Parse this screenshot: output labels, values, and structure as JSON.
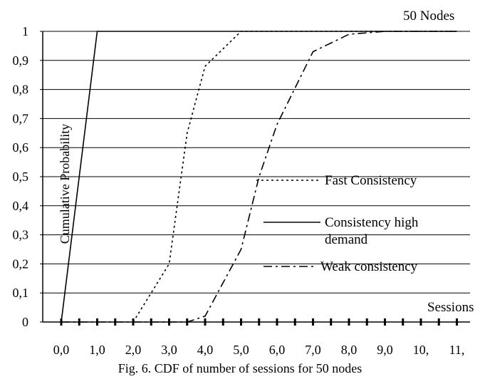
{
  "chart_data": {
    "type": "line",
    "title": "50 Nodes",
    "caption": "Fig. 6. CDF of number of sessions for 50 nodes",
    "xlabel": "Sessions",
    "ylabel": "Cumulative Probability",
    "xlim": [
      0,
      11
    ],
    "ylim": [
      0,
      1
    ],
    "x_tick_values": [
      0,
      1,
      2,
      3,
      4,
      5,
      6,
      7,
      8,
      9,
      10,
      11
    ],
    "x_tick_labels": [
      "0,0",
      "1,0",
      "2,0",
      "3,0",
      "4,0",
      "5,0",
      "6,0",
      "7,0",
      "8,0",
      "9,0",
      "10,",
      "11,"
    ],
    "y_tick_values": [
      0,
      0.1,
      0.2,
      0.3,
      0.4,
      0.5,
      0.6,
      0.7,
      0.8,
      0.9,
      1
    ],
    "y_tick_labels": [
      "0",
      "0,1",
      "0,2",
      "0,3",
      "0,4",
      "0,5",
      "0,6",
      "0,7",
      "0,8",
      "0,9",
      "1"
    ],
    "grid": "horizontal",
    "legend_position": "center-right",
    "series": [
      {
        "name": "Fast Consistency",
        "style": "dotted",
        "x": [
          2.0,
          3.0,
          3.5,
          4.0,
          4.5,
          5.0,
          9.0,
          11.0
        ],
        "y": [
          0.0,
          0.2,
          0.65,
          0.88,
          0.94,
          1.0,
          1.0,
          1.0
        ]
      },
      {
        "name": "Consistency high demand",
        "style": "solid",
        "x": [
          0.0,
          1.0,
          11.0
        ],
        "y": [
          0.0,
          1.0,
          1.0
        ]
      },
      {
        "name": "Weak consistency",
        "style": "dash-dot",
        "x": [
          0.0,
          3.5,
          4.0,
          5.0,
          5.5,
          6.0,
          7.0,
          8.0,
          9.0,
          11.0
        ],
        "y": [
          0.0,
          0.0,
          0.02,
          0.25,
          0.5,
          0.68,
          0.93,
          0.99,
          1.0,
          1.0
        ]
      }
    ],
    "colors": {
      "line": "#000000",
      "grid": "#000000",
      "background": "#ffffff"
    }
  }
}
